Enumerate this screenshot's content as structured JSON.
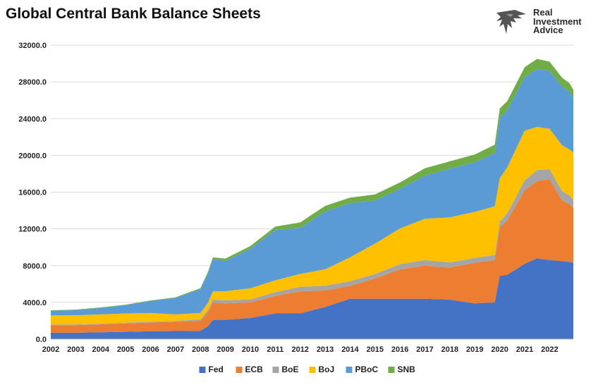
{
  "chart_data": {
    "type": "area",
    "stacked": true,
    "title": "Global Central Bank Balance Sheets",
    "xlabel": "",
    "ylabel": "",
    "ylim": [
      0,
      32000
    ],
    "yticks": [
      "0.0",
      "4000.0",
      "8000.0",
      "12000.0",
      "16000.0",
      "20000.0",
      "24000.0",
      "28000.0",
      "32000.0"
    ],
    "ytick_values": [
      0,
      4000,
      8000,
      12000,
      16000,
      20000,
      24000,
      28000,
      32000
    ],
    "xlim": [
      2002,
      2022.95
    ],
    "xticks": [
      "2002",
      "2003",
      "2004",
      "2005",
      "2006",
      "2007",
      "2008",
      "2009",
      "2010",
      "2011",
      "2012",
      "2013",
      "2014",
      "2015",
      "2016",
      "2017",
      "2018",
      "2019",
      "2020",
      "2021",
      "2022"
    ],
    "xtick_values": [
      2002,
      2003,
      2004,
      2005,
      2006,
      2007,
      2008,
      2009,
      2010,
      2011,
      2012,
      2013,
      2014,
      2015,
      2016,
      2017,
      2018,
      2019,
      2020,
      2021,
      2022
    ],
    "grid": "horizontal",
    "legend_position": "bottom",
    "x": [
      2002,
      2003,
      2004,
      2005,
      2006,
      2007,
      2008,
      2008.3,
      2008.5,
      2009,
      2010,
      2011,
      2012,
      2013,
      2014,
      2015,
      2016,
      2017,
      2018,
      2019,
      2019.8,
      2020,
      2020.3,
      2021,
      2021.5,
      2022,
      2022.5,
      2022.8,
      2022.95
    ],
    "series": [
      {
        "name": "Fed",
        "color": "#4472c4",
        "values": [
          700,
          700,
          750,
          800,
          850,
          880,
          900,
          1400,
          2100,
          2100,
          2300,
          2800,
          2800,
          3500,
          4400,
          4400,
          4400,
          4400,
          4300,
          3900,
          4000,
          6900,
          7000,
          8200,
          8800,
          8600,
          8500,
          8400,
          8300
        ]
      },
      {
        "name": "ECB",
        "color": "#ed7d31",
        "values": [
          800,
          820,
          850,
          900,
          950,
          1000,
          1100,
          1500,
          1900,
          1800,
          1700,
          1900,
          2400,
          1800,
          1400,
          2200,
          3200,
          3600,
          3500,
          4400,
          4600,
          5300,
          5900,
          8000,
          8400,
          8800,
          6600,
          6300,
          6000
        ]
      },
      {
        "name": "BoE",
        "color": "#a5a5a5",
        "values": [
          80,
          85,
          90,
          95,
          100,
          110,
          150,
          250,
          300,
          320,
          330,
          400,
          500,
          500,
          500,
          500,
          550,
          600,
          550,
          550,
          560,
          600,
          800,
          1100,
          1200,
          1100,
          1000,
          950,
          900
        ]
      },
      {
        "name": "BoJ",
        "color": "#ffc000",
        "values": [
          1000,
          1000,
          1000,
          1000,
          950,
          700,
          700,
          800,
          900,
          1000,
          1200,
          1300,
          1400,
          1800,
          2600,
          3300,
          3900,
          4500,
          4900,
          5000,
          5300,
          4700,
          5000,
          5400,
          4700,
          4400,
          5000,
          5000,
          5100
        ]
      },
      {
        "name": "PBoC",
        "color": "#5b9bd5",
        "values": [
          500,
          550,
          700,
          900,
          1300,
          1800,
          2600,
          3200,
          3500,
          3300,
          4300,
          5500,
          5000,
          6300,
          5900,
          4700,
          4300,
          4700,
          5300,
          5400,
          5800,
          6600,
          6200,
          5800,
          6300,
          6300,
          6400,
          6300,
          6000
        ]
      },
      {
        "name": "SNB",
        "color": "#70ad47",
        "values": [
          60,
          60,
          60,
          60,
          60,
          60,
          90,
          150,
          200,
          250,
          300,
          350,
          600,
          600,
          600,
          650,
          700,
          800,
          800,
          850,
          900,
          1000,
          1000,
          1100,
          1100,
          1000,
          950,
          900,
          850
        ]
      }
    ]
  }
}
